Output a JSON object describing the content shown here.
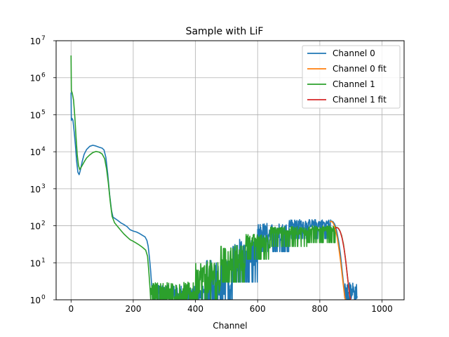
{
  "chart_data": {
    "type": "line",
    "title": "Sample with LiF",
    "xlabel": "Channel",
    "ylabel": "",
    "xlim": [
      -48,
      1071
    ],
    "ylim": [
      1,
      10000000
    ],
    "yscale": "log",
    "grid": true,
    "legend_position": "upper right",
    "x_ticks": [
      0,
      200,
      400,
      600,
      800,
      1000
    ],
    "x_tick_labels": [
      "0",
      "200",
      "400",
      "600",
      "800",
      "1000"
    ],
    "y_ticks": [
      1,
      10,
      100,
      1000,
      10000,
      100000,
      1000000,
      10000000
    ],
    "y_tick_labels": [
      {
        "base": "10",
        "exp": "0"
      },
      {
        "base": "10",
        "exp": "1"
      },
      {
        "base": "10",
        "exp": "2"
      },
      {
        "base": "10",
        "exp": "3"
      },
      {
        "base": "10",
        "exp": "4"
      },
      {
        "base": "10",
        "exp": "5"
      },
      {
        "base": "10",
        "exp": "6"
      },
      {
        "base": "10",
        "exp": "7"
      }
    ],
    "series": [
      {
        "name": "Channel 0",
        "color": "#1f77b4",
        "points": [
          [
            0,
            400000
          ],
          [
            1,
            70000
          ],
          [
            3,
            80000
          ],
          [
            6,
            72000
          ],
          [
            10,
            35000
          ],
          [
            14,
            15000
          ],
          [
            18,
            5500
          ],
          [
            22,
            2800
          ],
          [
            26,
            2400
          ],
          [
            30,
            3200
          ],
          [
            36,
            5500
          ],
          [
            42,
            8500
          ],
          [
            50,
            11500
          ],
          [
            60,
            14000
          ],
          [
            70,
            15000
          ],
          [
            80,
            14300
          ],
          [
            90,
            13300
          ],
          [
            100,
            12500
          ],
          [
            106,
            11200
          ],
          [
            112,
            7000
          ],
          [
            118,
            2500
          ],
          [
            124,
            700
          ],
          [
            130,
            260
          ],
          [
            135,
            170
          ],
          [
            140,
            160
          ],
          [
            150,
            140
          ],
          [
            160,
            120
          ],
          [
            170,
            108
          ],
          [
            180,
            95
          ],
          [
            190,
            78
          ],
          [
            200,
            72
          ],
          [
            210,
            68
          ],
          [
            220,
            62
          ],
          [
            230,
            55
          ],
          [
            238,
            50
          ],
          [
            244,
            40
          ],
          [
            248,
            28
          ],
          [
            252,
            14
          ],
          [
            256,
            6
          ],
          [
            260,
            2
          ],
          [
            262,
            1
          ]
        ],
        "noisy_segments": [
          {
            "x_start": 262,
            "x_end": 430,
            "y_low": 1,
            "y_high": 2.5
          },
          {
            "x_start": 430,
            "x_end": 520,
            "y_low": 1.3,
            "y_high": 12
          },
          {
            "x_start": 520,
            "x_end": 600,
            "y_low": 6,
            "y_high": 45
          },
          {
            "x_start": 600,
            "x_end": 700,
            "y_low": 40,
            "y_high": 120
          },
          {
            "x_start": 700,
            "x_end": 835,
            "y_low": 90,
            "y_high": 150
          },
          {
            "x_start": 880,
            "x_end": 920,
            "y_low": 1,
            "y_high": 3
          }
        ],
        "tail": [
          [
            835,
            135
          ],
          [
            842,
            130
          ],
          [
            848,
            110
          ],
          [
            854,
            75
          ],
          [
            860,
            40
          ],
          [
            866,
            18
          ],
          [
            872,
            6
          ],
          [
            878,
            2
          ],
          [
            882,
            1
          ]
        ]
      },
      {
        "name": "Channel 0 fit",
        "color": "#ff7f0e",
        "points": [
          [
            832,
            128
          ],
          [
            838,
            132
          ],
          [
            844,
            115
          ],
          [
            850,
            82
          ],
          [
            856,
            48
          ],
          [
            862,
            22
          ],
          [
            868,
            9
          ],
          [
            874,
            3.2
          ],
          [
            880,
            1.2
          ],
          [
            882,
            1
          ]
        ]
      },
      {
        "name": "Channel 1",
        "color": "#2ca02c",
        "points": [
          [
            0,
            4000000
          ],
          [
            1,
            450000
          ],
          [
            4,
            380000
          ],
          [
            8,
            250000
          ],
          [
            12,
            90000
          ],
          [
            16,
            25000
          ],
          [
            20,
            8000
          ],
          [
            24,
            4200
          ],
          [
            28,
            3300
          ],
          [
            34,
            4000
          ],
          [
            42,
            5300
          ],
          [
            50,
            6800
          ],
          [
            60,
            8200
          ],
          [
            70,
            9500
          ],
          [
            80,
            10200
          ],
          [
            90,
            9800
          ],
          [
            100,
            8700
          ],
          [
            108,
            6500
          ],
          [
            114,
            3500
          ],
          [
            120,
            1400
          ],
          [
            126,
            450
          ],
          [
            132,
            180
          ],
          [
            140,
            120
          ],
          [
            150,
            95
          ],
          [
            160,
            75
          ],
          [
            170,
            60
          ],
          [
            180,
            50
          ],
          [
            190,
            42
          ],
          [
            200,
            38
          ],
          [
            210,
            34
          ],
          [
            220,
            30
          ],
          [
            230,
            26
          ],
          [
            240,
            22
          ],
          [
            246,
            15
          ],
          [
            250,
            6
          ],
          [
            254,
            2
          ],
          [
            256,
            1
          ]
        ],
        "noisy_segments": [
          {
            "x_start": 256,
            "x_end": 400,
            "y_low": 1,
            "y_high": 3
          },
          {
            "x_start": 400,
            "x_end": 480,
            "y_low": 1.5,
            "y_high": 12
          },
          {
            "x_start": 480,
            "x_end": 560,
            "y_low": 6,
            "y_high": 30
          },
          {
            "x_start": 560,
            "x_end": 640,
            "y_low": 25,
            "y_high": 60
          },
          {
            "x_start": 640,
            "x_end": 760,
            "y_low": 55,
            "y_high": 95
          },
          {
            "x_start": 760,
            "x_end": 850,
            "y_low": 70,
            "y_high": 100
          }
        ],
        "tail": [
          [
            850,
            92
          ],
          [
            858,
            88
          ],
          [
            864,
            75
          ],
          [
            870,
            55
          ],
          [
            876,
            32
          ],
          [
            882,
            14
          ],
          [
            888,
            5
          ],
          [
            894,
            1.8
          ],
          [
            898,
            1
          ]
        ]
      },
      {
        "name": "Channel 1 fit",
        "color": "#d62728",
        "points": [
          [
            848,
            85
          ],
          [
            854,
            90
          ],
          [
            860,
            85
          ],
          [
            866,
            68
          ],
          [
            872,
            45
          ],
          [
            878,
            24
          ],
          [
            884,
            10
          ],
          [
            890,
            3.5
          ],
          [
            896,
            1.3
          ],
          [
            899,
            1
          ]
        ]
      }
    ]
  }
}
